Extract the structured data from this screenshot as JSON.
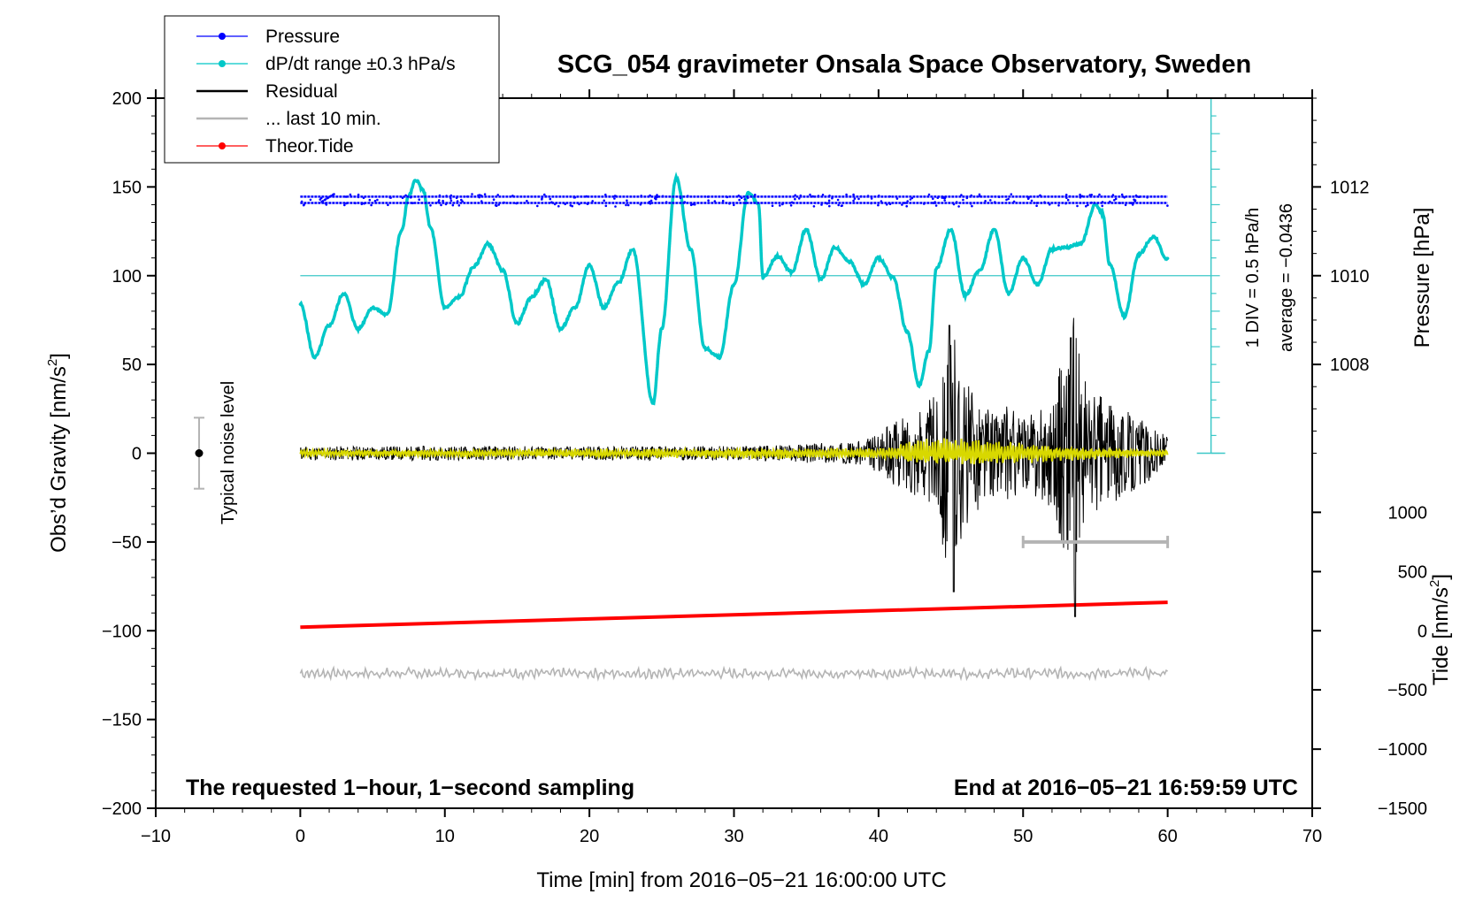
{
  "chart_data": {
    "type": "line",
    "title": "SCG_054 gravimeter Onsala Space Observatory, Sweden",
    "xlabel": "Time [min] from 2016−05−21 16:00:00 UTC",
    "ylabel": "Obs’d Gravity [nm/s",
    "ylabel_sup": "2",
    "ylabel_end": "]",
    "xlim": [
      -10,
      70
    ],
    "ylim": [
      -200,
      200
    ],
    "x_ticks": [
      -10,
      0,
      10,
      20,
      30,
      40,
      50,
      60,
      70
    ],
    "x_tick_labels": [
      "−10",
      "0",
      "10",
      "20",
      "30",
      "40",
      "50",
      "60",
      "70"
    ],
    "y_ticks": [
      -200,
      -150,
      -100,
      -50,
      0,
      50,
      100,
      150,
      200
    ],
    "y_tick_labels": [
      "−200",
      "−150",
      "−100",
      "−50",
      "0",
      "50",
      "100",
      "150",
      "200"
    ],
    "pressure_axis": {
      "label": "Pressure [hPa]",
      "ticks": [
        {
          "value": 1012,
          "at": 150,
          "label": "1012"
        },
        {
          "value": 1010,
          "at": 100,
          "label": "1010"
        },
        {
          "value": 1008,
          "at": 50,
          "label": "1008"
        }
      ]
    },
    "tide_axis": {
      "label": "Tide [nm/s",
      "label_sup": "2",
      "label_end": "]",
      "ticks": [
        {
          "value": 1000,
          "at": -33.3,
          "label": "1000"
        },
        {
          "value": 500,
          "at": -66.7,
          "label": "500"
        },
        {
          "value": 0,
          "at": -100,
          "label": "0"
        },
        {
          "value": -500,
          "at": -133.3,
          "label": "−500"
        },
        {
          "value": -1000,
          "at": -166.7,
          "label": "−1000"
        },
        {
          "value": -1500,
          "at": -200,
          "label": "−1500"
        }
      ]
    },
    "legend": {
      "placement": "top-left",
      "entries": [
        {
          "label": "Pressure",
          "color": "#0000ff",
          "marker": "dot"
        },
        {
          "label": "dP/dt range ±0.3 hPa/s",
          "color": "#00c8c8",
          "marker": "dot"
        },
        {
          "label": "Residual",
          "color": "#000000",
          "marker": "line"
        },
        {
          "label": "... last 10 min.",
          "color": "#b4b4b4",
          "marker": "line"
        },
        {
          "label": "Theor.Tide",
          "color": "#ff0000",
          "marker": "dot"
        }
      ]
    },
    "series": [
      {
        "name": "Pressure",
        "color": "#0000ff",
        "x": [
          0,
          60
        ],
        "values": [
          144,
          142
        ],
        "scatter_band": [
          139,
          146
        ]
      },
      {
        "name": "dP/dt range ±0.3 hPa/s",
        "color": "#00c8c8",
        "x": [
          0,
          1,
          2,
          3,
          4,
          5,
          6,
          7,
          7.5,
          8,
          8.5,
          9,
          10,
          11,
          12,
          13,
          14,
          15,
          16,
          17,
          18,
          19,
          20,
          21,
          22,
          23,
          24.4,
          25,
          26,
          27,
          28,
          29,
          30,
          31,
          31.7,
          32,
          33,
          34,
          35,
          36,
          37,
          38,
          39,
          40,
          41,
          42,
          42.8,
          43.5,
          44,
          45,
          46,
          47,
          48,
          49,
          50,
          51,
          52,
          53,
          54,
          55,
          55.5,
          56,
          57,
          58,
          59,
          60
        ],
        "values": [
          84,
          54,
          72,
          90,
          70,
          82,
          78,
          125,
          145,
          154,
          148,
          127,
          82,
          88,
          105,
          118,
          103,
          73,
          88,
          98,
          70,
          82,
          106,
          82,
          96,
          115,
          28,
          70,
          155,
          115,
          59,
          54,
          95,
          147,
          140,
          99,
          111,
          102,
          126,
          98,
          116,
          108,
          95,
          110,
          99,
          68,
          38,
          58,
          104,
          126,
          89,
          103,
          126,
          90,
          110,
          95,
          115,
          116,
          118,
          140,
          135,
          106,
          77,
          112,
          122,
          109
        ]
      },
      {
        "name": "Residual",
        "color": "#000000",
        "x": [
          0,
          10,
          20,
          30,
          38,
          40,
          41,
          42,
          43,
          44,
          44.9,
          45.2,
          45.5,
          46,
          47,
          48,
          49,
          50,
          51,
          52,
          53,
          53.5,
          53.8,
          54,
          55,
          56,
          57,
          58,
          59,
          60
        ],
        "values": [
          0,
          0,
          0,
          0,
          0,
          0,
          5,
          -8,
          10,
          -15,
          72,
          -78,
          50,
          -40,
          30,
          -20,
          25,
          -15,
          20,
          -25,
          60,
          -92,
          65,
          -50,
          35,
          -30,
          28,
          -20,
          15,
          0
        ],
        "envelope": [
          4,
          4,
          4,
          4,
          6,
          10,
          18,
          22,
          25,
          35,
          72,
          70,
          55,
          40,
          32,
          25,
          28,
          20,
          25,
          30,
          65,
          80,
          60,
          45,
          35,
          28,
          25,
          20,
          15,
          10
        ]
      },
      {
        "name": "... last 10 min.",
        "color": "#b4b4b4",
        "x": [
          0,
          60
        ],
        "values": [
          -124,
          -124
        ]
      },
      {
        "name": "Theor.Tide",
        "color": "#ff0000",
        "x": [
          0,
          60
        ],
        "values": [
          -98,
          -84
        ]
      },
      {
        "name": "Residual smoothed",
        "color": "#d8d800",
        "x": [
          0,
          40,
          43,
          60
        ],
        "values": [
          0,
          0,
          0,
          0
        ],
        "envelope": [
          2,
          3,
          8,
          2
        ]
      }
    ],
    "annotations": {
      "left_note": "The requested 1−hour, 1−second sampling",
      "right_note": "End at 2016−05−21 16:59:59 UTC",
      "noise_label": "Typical noise level",
      "noise_bar": {
        "x": -7,
        "center": 0,
        "half_range": 20
      },
      "div_label": "1 DIV = 0.5 hPa/h",
      "average_label": "average = −0.0436",
      "div_scale": {
        "x": 63,
        "from": 0,
        "to": 200,
        "major_step": 20,
        "reference_y": 100
      },
      "last10_bar": {
        "from": 50,
        "to": 60,
        "y": -50
      }
    }
  }
}
